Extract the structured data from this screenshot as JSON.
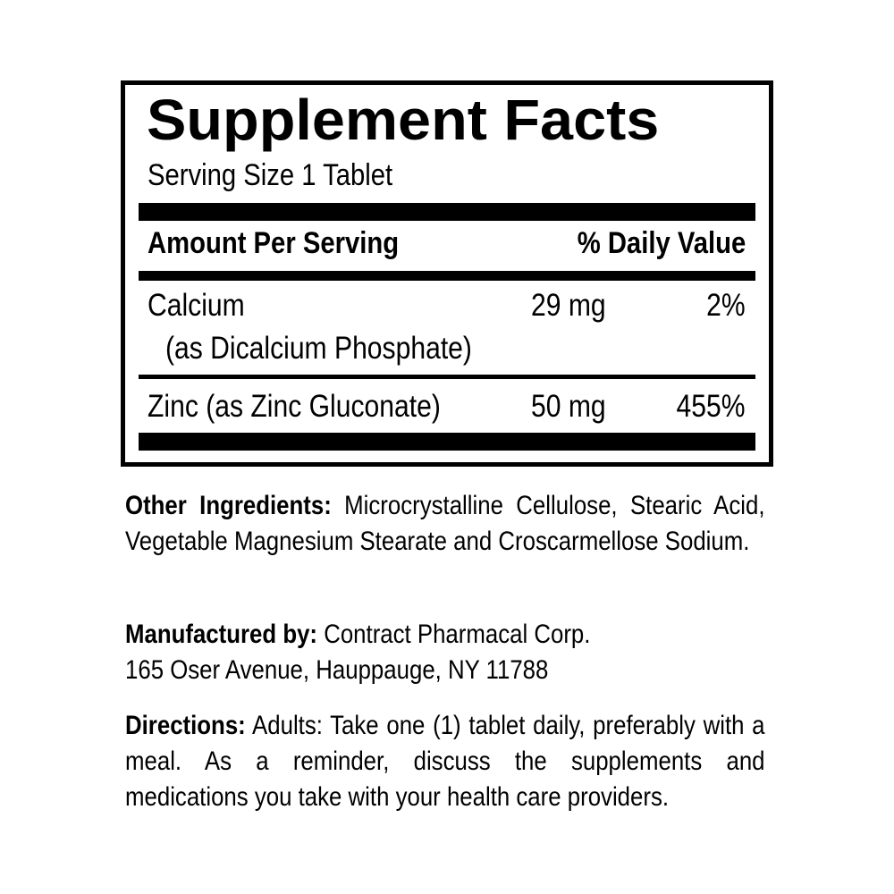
{
  "facts": {
    "title": "Supplement Facts",
    "serving_size": "Serving Size 1 Tablet",
    "header_amount": "Amount Per Serving",
    "header_dv": "% Daily Value",
    "rows": [
      {
        "name": "Calcium",
        "sub": "(as Dicalcium Phosphate)",
        "amount": "29 mg",
        "dv": "2%"
      },
      {
        "name": "Zinc (as Zinc Gluconate)",
        "amount": "50 mg",
        "dv": "455%"
      }
    ]
  },
  "other_ingredients": {
    "label": "Other Ingredients:",
    "text": "Microcrystalline Cellulose, Stearic Acid, Vegetable Magnesium Stearate and Croscarmellose Sodium."
  },
  "manufacturer": {
    "label": "Manufactured by:",
    "name": "Contract Pharmacal Corp.",
    "address": "165 Oser Avenue, Hauppauge, NY 11788"
  },
  "directions": {
    "label": "Directions:",
    "text": "Adults: Take one (1) tablet daily, preferably with a meal. As a reminder, discuss the supplements and medications you take with your health care providers."
  }
}
